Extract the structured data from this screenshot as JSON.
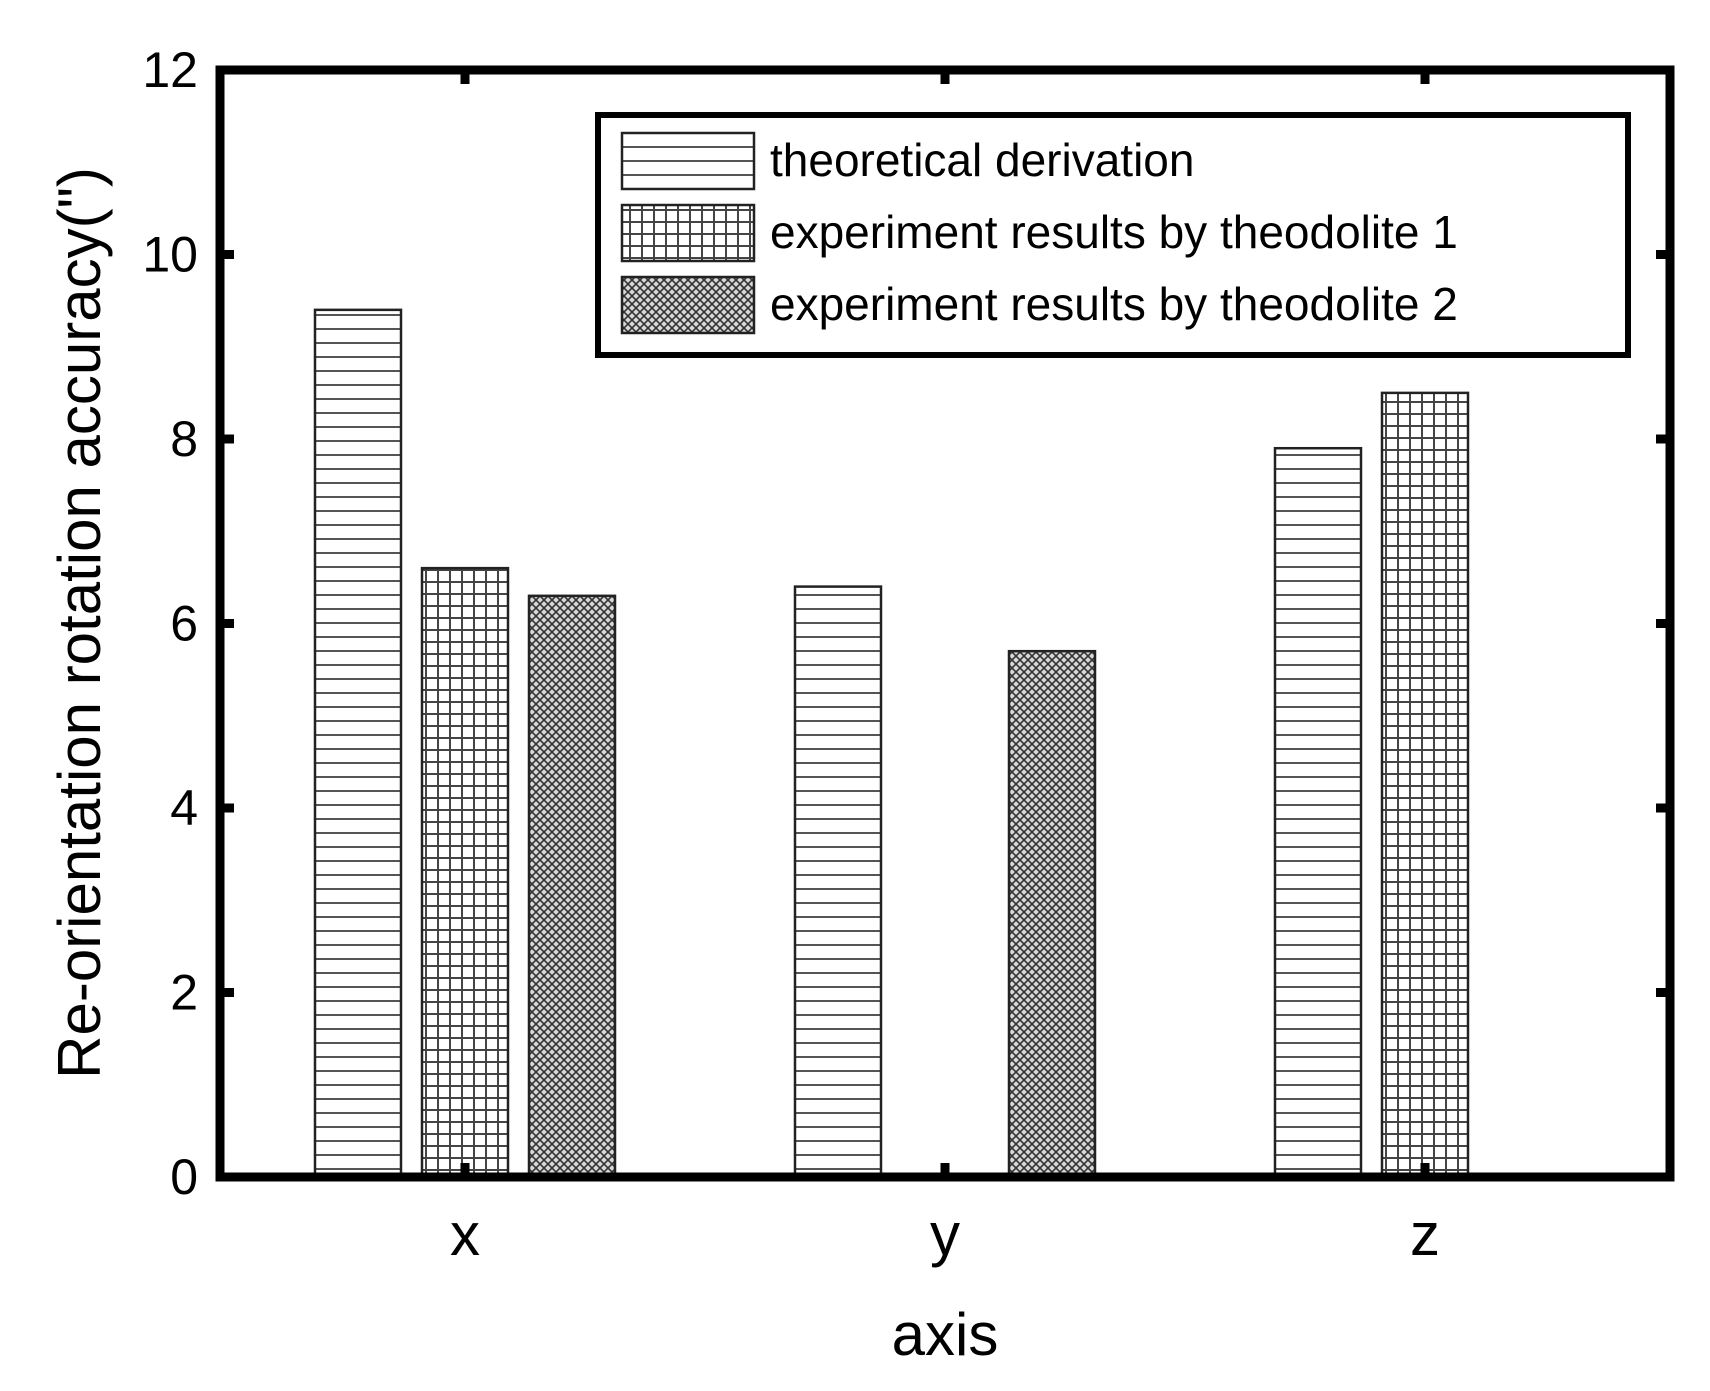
{
  "chart_data": {
    "type": "bar",
    "title": "",
    "xlabel": "axis",
    "ylabel": "Re-orientation rotation accuracy(\")",
    "categories": [
      "x",
      "y",
      "z"
    ],
    "ylim": [
      0,
      12
    ],
    "yticks": [
      "0",
      "2",
      "4",
      "6",
      "8",
      "10",
      "12"
    ],
    "legend_position": "top-right",
    "grid": false,
    "series": [
      {
        "name": "theoretical derivation",
        "pattern": "horizontal-lines",
        "values": [
          9.4,
          6.4,
          7.9
        ]
      },
      {
        "name": "experiment results by theodolite 1",
        "pattern": "grid",
        "values": [
          6.6,
          0.0,
          8.5
        ]
      },
      {
        "name": "experiment results by theodolite 2",
        "pattern": "crosshatch",
        "values": [
          6.3,
          5.7,
          0.0
        ]
      }
    ]
  },
  "colors": {
    "ink": "#000000",
    "fill": "#ffffff",
    "pattern": "#555555"
  }
}
